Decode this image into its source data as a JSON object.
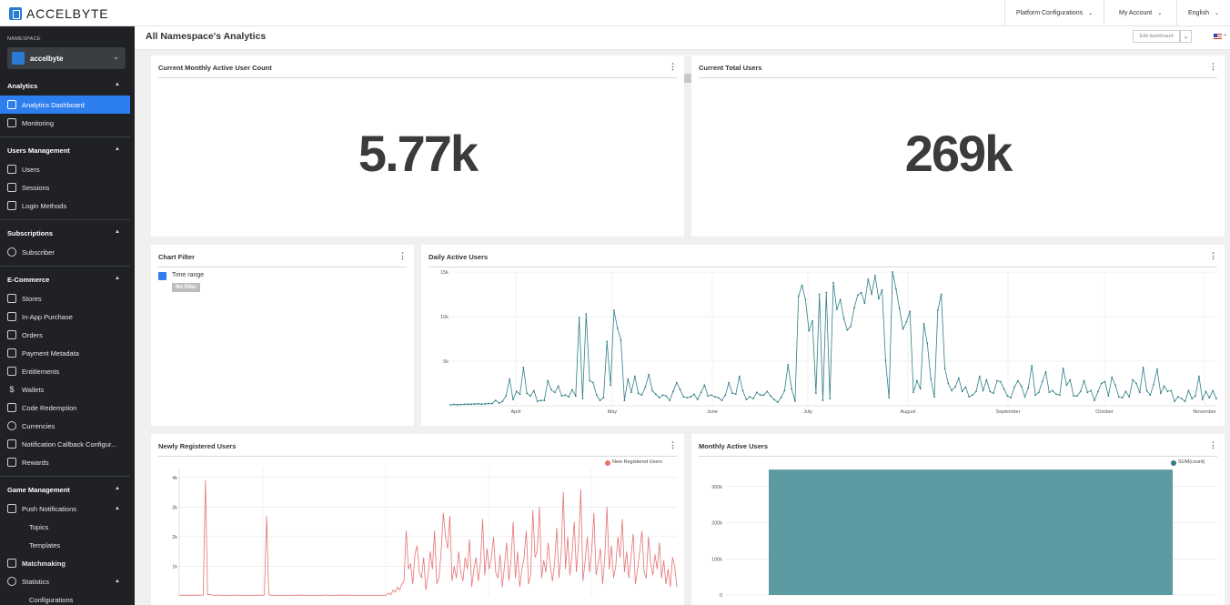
{
  "brand": {
    "logo_text": "ACCELBYTE"
  },
  "topnav": {
    "platform_configurations": "Platform Configurations",
    "my_account": "My Account",
    "language": "English"
  },
  "sidebar": {
    "namespace_label": "NAMESPACE",
    "namespace_value": "accelbyte",
    "sections": {
      "analytics": "Analytics",
      "users_management": "Users Management",
      "subscriptions": "Subscriptions",
      "ecommerce": "E-Commerce",
      "game_management": "Game Management"
    },
    "items": {
      "analytics_dashboard": "Analytics Dashboard",
      "monitoring": "Monitoring",
      "users": "Users",
      "sessions": "Sessions",
      "login_methods": "Login Methods",
      "subscriber": "Subscriber",
      "stores": "Stores",
      "in_app_purchase": "In-App Purchase",
      "orders": "Orders",
      "payment_metadata": "Payment Metadata",
      "entitlements": "Entitlements",
      "wallets": "Wallets",
      "code_redemption": "Code Redemption",
      "currencies": "Currencies",
      "notification_callback": "Notification Callback Configur...",
      "rewards": "Rewards",
      "push_notifications": "Push Notifications",
      "topics": "Topics",
      "templates": "Templates",
      "matchmaking": "Matchmaking",
      "statistics": "Statistics",
      "configurations": "Configurations"
    }
  },
  "page": {
    "title": "All Namespace's Analytics",
    "edit_dashboard": "Edit dashboard"
  },
  "cards": {
    "mau_count": {
      "title": "Current Monthly Active User Count",
      "value": "5.77k"
    },
    "total_users": {
      "title": "Current Total Users",
      "value": "269k"
    },
    "chart_filter": {
      "title": "Chart Filter",
      "filter_label": "Time range",
      "filter_value": "No filter"
    },
    "dau": {
      "title": "Daily Active Users"
    },
    "new_users": {
      "title": "Newly Registered Users",
      "legend": "New Registered Users"
    },
    "mau": {
      "title": "Monthly Active Users",
      "legend": "SUM(count)"
    }
  },
  "colors": {
    "accent": "#2d7ff0",
    "dau_line": "#2f7f87",
    "new_users_line": "#e57373",
    "mau_bar": "#5b9aa0"
  },
  "chart_data": [
    {
      "type": "line",
      "title": "Daily Active Users",
      "x_ticks": [
        "April",
        "May",
        "June",
        "July",
        "August",
        "September",
        "October",
        "November"
      ],
      "y_ticks": [
        "5k",
        "10k",
        "15k"
      ],
      "ylim": [
        0,
        15000
      ],
      "series": [
        {
          "values": [
            100,
            150,
            120,
            140,
            160,
            180,
            170,
            200,
            220,
            180,
            210,
            250,
            240,
            600,
            300,
            500,
            1100,
            3000,
            700,
            1600,
            1300,
            4300,
            1400,
            1100,
            1700,
            500,
            600,
            600,
            2800,
            1800,
            1500,
            2200,
            1100,
            1200,
            1000,
            1800,
            1100,
            9900,
            800,
            10300,
            2800,
            2600,
            1200,
            600,
            900,
            7200,
            2300,
            10700,
            8700,
            7400,
            600,
            3000,
            1500,
            3300,
            1400,
            1200,
            2100,
            3500,
            1700,
            1300,
            900,
            1200,
            1100,
            600,
            1600,
            2600,
            1800,
            1000,
            900,
            1000,
            1300,
            700,
            1500,
            2300,
            1100,
            1200,
            1000,
            900,
            600,
            1200,
            2600,
            1400,
            1300,
            3300,
            1700,
            700,
            1000,
            800,
            1500,
            1200,
            1200,
            1600,
            1100,
            700,
            400,
            900,
            1700,
            4600,
            1900,
            500,
            12300,
            13500,
            11900,
            8400,
            9500,
            1400,
            12500,
            600,
            12700,
            800,
            13800,
            10800,
            11900,
            9800,
            8500,
            8900,
            11000,
            12400,
            12700,
            11500,
            14200,
            12500,
            14600,
            12000,
            13000,
            5100,
            900,
            15000,
            13100,
            10900,
            8600,
            9400,
            10600,
            1500,
            2800,
            1900,
            9200,
            7000,
            3000,
            1000,
            10700,
            12500,
            4200,
            2500,
            1700,
            2100,
            3100,
            1600,
            2100,
            1000,
            1200,
            1600,
            3300,
            1700,
            2900,
            1600,
            1400,
            2800,
            2700,
            1900,
            1100,
            900,
            2100,
            2800,
            2200,
            1000,
            2000,
            4500,
            1200,
            1500,
            2700,
            3800,
            1500,
            1700,
            1300,
            1200,
            4200,
            2300,
            2900,
            1100,
            1100,
            1600,
            2800,
            1500,
            1700,
            600,
            1600,
            2500,
            2700,
            1100,
            3200,
            2300,
            1000,
            900,
            1600,
            1000,
            2900,
            2500,
            1500,
            4300,
            1700,
            1200,
            2400,
            4100,
            1400,
            2200,
            1600,
            1700,
            500,
            1000,
            800,
            500,
            1700,
            800,
            1100,
            3300,
            700,
            1600,
            900,
            1700,
            800
          ]
        }
      ]
    },
    {
      "type": "line",
      "title": "Newly Registered Users",
      "y_ticks": [
        "1k",
        "2k",
        "3k",
        "4k"
      ],
      "ylim": [
        0,
        4300
      ],
      "series": [
        {
          "name": "New Registered Users",
          "values": [
            20,
            20,
            25,
            20,
            20,
            20,
            20,
            25,
            20,
            20,
            20,
            30,
            3900,
            40,
            50,
            30,
            20,
            20,
            30,
            20,
            20,
            20,
            20,
            20,
            20,
            20,
            30,
            20,
            20,
            20,
            20,
            20,
            20,
            20,
            20,
            20,
            20,
            20,
            20,
            30,
            2700,
            40,
            20,
            20,
            20,
            20,
            20,
            20,
            20,
            20,
            20,
            20,
            20,
            20,
            20,
            20,
            25,
            20,
            20,
            20,
            20,
            20,
            20,
            20,
            20,
            20,
            20,
            30,
            20,
            20,
            20,
            20,
            20,
            20,
            20,
            25,
            20,
            20,
            20,
            20,
            20,
            20,
            20,
            20,
            20,
            20,
            20,
            20,
            20,
            20,
            20,
            20,
            20,
            20,
            20,
            30,
            100,
            40,
            200,
            120,
            300,
            200,
            400,
            500,
            2200,
            900,
            1100,
            400,
            1400,
            1700,
            800,
            600,
            1300,
            200,
            700,
            1500,
            900,
            2200,
            400,
            600,
            1500,
            2800,
            2000,
            1600,
            2700,
            500,
            1000,
            600,
            1500,
            800,
            500,
            1300,
            900,
            1900,
            300,
            900,
            1300,
            500,
            1100,
            2600,
            700,
            1600,
            900,
            1300,
            2000,
            800,
            600,
            1400,
            300,
            1000,
            1800,
            500,
            1200,
            2500,
            600,
            1500,
            300,
            900,
            1300,
            2200,
            400,
            700,
            2900,
            1300,
            1500,
            3000,
            600,
            1200,
            800,
            1800,
            1000,
            500,
            1100,
            2300,
            600,
            1400,
            3500,
            900,
            2000,
            700,
            1400,
            2500,
            800,
            1800,
            3600,
            500,
            1200,
            2000,
            800,
            1500,
            2800,
            700,
            1100,
            1600,
            400,
            1300,
            3000,
            900,
            1700,
            600,
            1000,
            2000,
            1300,
            2600,
            800,
            1500,
            600,
            1300,
            2100,
            400,
            900,
            1500,
            2200,
            800,
            600,
            2000,
            1100,
            700,
            1400,
            900,
            1800,
            600,
            1200,
            400,
            900,
            300,
            1300,
            1000,
            300
          ]
        }
      ]
    },
    {
      "type": "bar",
      "title": "Monthly Active Users",
      "y_ticks": [
        "0",
        "100k",
        "200k",
        "300k"
      ],
      "ylim": [
        0,
        350000
      ],
      "series": [
        {
          "name": "SUM(count)",
          "values": [
            347000
          ]
        }
      ]
    }
  ]
}
